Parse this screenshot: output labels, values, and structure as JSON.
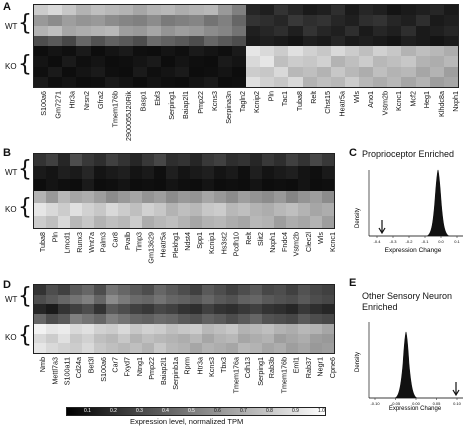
{
  "panels": {
    "A": {
      "letter": "A",
      "rows": [
        "WT",
        "KO"
      ],
      "genes": [
        "S100a6",
        "Gm7271",
        "Htr3a",
        "Nrsn2",
        "Gfra2",
        "Tmem176b",
        "2900055J20Rik",
        "Basp1",
        "Ebf3",
        "Serping1",
        "Baiap2l1",
        "Pmp22",
        "Kcns3",
        "Serpina3n",
        "Tagln2",
        "Kcnip2",
        "Pln",
        "Tac1",
        "Tuba8",
        "Relt",
        "Chst15",
        "Heatr5a",
        "Wls",
        "Ano1",
        "Vstm2b",
        "Kcnc1",
        "Mcf2",
        "Heg1",
        "Klhdc8a",
        "Nxph1"
      ]
    },
    "B": {
      "letter": "B",
      "rows": [
        "WT",
        "KO"
      ],
      "genes": [
        "Tuba8",
        "Pln",
        "Lmcd1",
        "Runx3",
        "Wnt7a",
        "Palm3",
        "Car8",
        "Pvalb",
        "Timp3",
        "Gm13629",
        "Heatr5a",
        "Plekhg1",
        "Ndst4",
        "Spp1",
        "Kcnip1",
        "Hs3st2",
        "Pcdh10",
        "Relt",
        "Slit2",
        "Nxph1",
        "Fndc4",
        "Vstm2b",
        "Clec2l",
        "Wls",
        "Kcnc1"
      ]
    },
    "C": {
      "letter": "C",
      "title": "Proprioceptor Enriched",
      "ylabel": "Density",
      "xlabel": "Expression Change",
      "ticks": [
        "-0.4",
        "-0.3",
        "-0.2",
        "-0.1",
        "0.0",
        "0.1"
      ]
    },
    "D": {
      "letter": "D",
      "rows": [
        "WT",
        "KO"
      ],
      "genes": [
        "Nmb",
        "Mettl7a3",
        "S100a11",
        "Cd24a",
        "Bet3l",
        "S100a6",
        "Car7",
        "Fxyd7",
        "Ntng1",
        "Pmp22",
        "Baiap2l1",
        "Serpinb1a",
        "Rprm",
        "Htr3a",
        "Kcns3",
        "Tbx3",
        "Tmem176a",
        "Cdh13",
        "Serping1",
        "Rab3b",
        "Tmem176b",
        "Eml1",
        "Rab37",
        "Negr1",
        "Cpne6"
      ]
    },
    "E": {
      "letter": "E",
      "title_line1": "Other Sensory Neuron",
      "title_line2": "Enriched",
      "ylabel": "Density",
      "xlabel": "Expression Change",
      "ticks": [
        "-0.10",
        "-0.05",
        "0.00",
        "0.05",
        "0.10"
      ]
    }
  },
  "colorbar": {
    "label": "Expression level, normalized TPM",
    "ticks": [
      "0.1",
      "0.2",
      "0.3",
      "0.4",
      "0.5",
      "0.6",
      "0.7",
      "0.8",
      "0.9",
      "1.0"
    ],
    "min": 0.0,
    "max": 1.0
  },
  "heatmap_values": {
    "A": [
      [
        0.8,
        0.85,
        0.78,
        0.7,
        0.75,
        0.72,
        0.7,
        0.65,
        0.7,
        0.72,
        0.68,
        0.7,
        0.72,
        0.6,
        0.5,
        0.15,
        0.12,
        0.2,
        0.15,
        0.1,
        0.12,
        0.18,
        0.1,
        0.15,
        0.12,
        0.08,
        0.1,
        0.12,
        0.15,
        0.1
      ],
      [
        0.6,
        0.55,
        0.62,
        0.58,
        0.6,
        0.55,
        0.52,
        0.5,
        0.55,
        0.48,
        0.5,
        0.52,
        0.45,
        0.5,
        0.4,
        0.2,
        0.18,
        0.15,
        0.22,
        0.18,
        0.2,
        0.15,
        0.12,
        0.18,
        0.2,
        0.15,
        0.12,
        0.18,
        0.1,
        0.12
      ],
      [
        0.7,
        0.75,
        0.65,
        0.68,
        0.7,
        0.72,
        0.62,
        0.6,
        0.65,
        0.58,
        0.62,
        0.6,
        0.55,
        0.52,
        0.45,
        0.12,
        0.15,
        0.18,
        0.12,
        0.2,
        0.15,
        0.12,
        0.18,
        0.1,
        0.15,
        0.12,
        0.18,
        0.1,
        0.12,
        0.15
      ],
      [
        0.3,
        0.35,
        0.28,
        0.4,
        0.32,
        0.38,
        0.35,
        0.3,
        0.42,
        0.38,
        0.35,
        0.3,
        0.4,
        0.35,
        0.3,
        0.1,
        0.12,
        0.1,
        0.08,
        0.12,
        0.1,
        0.15,
        0.1,
        0.12,
        0.1,
        0.08,
        0.12,
        0.1,
        0.08,
        0.1
      ],
      [
        0.05,
        0.08,
        0.06,
        0.1,
        0.05,
        0.08,
        0.1,
        0.06,
        0.05,
        0.08,
        0.06,
        0.1,
        0.08,
        0.06,
        0.1,
        0.9,
        0.85,
        0.8,
        0.88,
        0.82,
        0.78,
        0.85,
        0.8,
        0.75,
        0.82,
        0.78,
        0.7,
        0.75,
        0.72,
        0.68
      ],
      [
        0.08,
        0.05,
        0.1,
        0.06,
        0.08,
        0.05,
        0.06,
        0.08,
        0.1,
        0.05,
        0.08,
        0.06,
        0.05,
        0.1,
        0.08,
        0.85,
        0.9,
        0.75,
        0.8,
        0.78,
        0.82,
        0.7,
        0.75,
        0.8,
        0.72,
        0.75,
        0.78,
        0.7,
        0.68,
        0.72
      ],
      [
        0.06,
        0.1,
        0.05,
        0.08,
        0.1,
        0.06,
        0.05,
        0.1,
        0.06,
        0.08,
        0.1,
        0.05,
        0.06,
        0.08,
        0.05,
        0.8,
        0.78,
        0.85,
        0.72,
        0.75,
        0.7,
        0.78,
        0.72,
        0.68,
        0.75,
        0.7,
        0.72,
        0.65,
        0.7,
        0.62
      ],
      [
        0.1,
        0.06,
        0.08,
        0.05,
        0.06,
        0.1,
        0.08,
        0.05,
        0.08,
        0.06,
        0.05,
        0.08,
        0.1,
        0.05,
        0.06,
        0.88,
        0.82,
        0.78,
        0.85,
        0.7,
        0.75,
        0.72,
        0.8,
        0.72,
        0.68,
        0.72,
        0.65,
        0.7,
        0.62,
        0.65
      ]
    ],
    "B": [
      [
        0.2,
        0.25,
        0.15,
        0.3,
        0.22,
        0.18,
        0.25,
        0.2,
        0.15,
        0.22,
        0.28,
        0.18,
        0.2,
        0.15,
        0.22,
        0.25,
        0.18,
        0.2,
        0.15,
        0.22,
        0.18,
        0.25,
        0.2,
        0.28,
        0.22
      ],
      [
        0.1,
        0.08,
        0.12,
        0.1,
        0.15,
        0.08,
        0.1,
        0.12,
        0.08,
        0.1,
        0.06,
        0.12,
        0.08,
        0.1,
        0.12,
        0.08,
        0.1,
        0.06,
        0.12,
        0.08,
        0.1,
        0.12,
        0.08,
        0.06,
        0.1
      ],
      [
        0.05,
        0.08,
        0.06,
        0.05,
        0.1,
        0.05,
        0.06,
        0.08,
        0.05,
        0.06,
        0.05,
        0.08,
        0.06,
        0.05,
        0.08,
        0.05,
        0.06,
        0.05,
        0.08,
        0.05,
        0.06,
        0.05,
        0.08,
        0.05,
        0.06
      ],
      [
        0.7,
        0.6,
        0.72,
        0.65,
        0.68,
        0.62,
        0.55,
        0.6,
        0.65,
        0.58,
        0.62,
        0.55,
        0.6,
        0.58,
        0.65,
        0.6,
        0.55,
        0.62,
        0.58,
        0.55,
        0.6,
        0.52,
        0.58,
        0.62,
        0.55
      ],
      [
        0.9,
        0.85,
        0.8,
        0.88,
        0.82,
        0.78,
        0.85,
        0.8,
        0.75,
        0.82,
        0.78,
        0.7,
        0.75,
        0.72,
        0.78,
        0.8,
        0.72,
        0.75,
        0.7,
        0.68,
        0.72,
        0.75,
        0.7,
        0.65,
        0.68
      ],
      [
        0.8,
        0.75,
        0.85,
        0.72,
        0.78,
        0.7,
        0.75,
        0.72,
        0.8,
        0.68,
        0.72,
        0.75,
        0.7,
        0.65,
        0.7,
        0.72,
        0.68,
        0.65,
        0.72,
        0.7,
        0.62,
        0.68,
        0.65,
        0.7,
        0.62
      ]
    ],
    "D": [
      [
        0.2,
        0.3,
        0.25,
        0.35,
        0.4,
        0.3,
        0.45,
        0.4,
        0.35,
        0.3,
        0.4,
        0.35,
        0.3,
        0.25,
        0.35,
        0.3,
        0.25,
        0.3,
        0.35,
        0.28,
        0.3,
        0.25,
        0.32,
        0.28,
        0.25
      ],
      [
        0.3,
        0.35,
        0.4,
        0.45,
        0.5,
        0.4,
        0.55,
        0.48,
        0.42,
        0.4,
        0.45,
        0.4,
        0.38,
        0.35,
        0.4,
        0.35,
        0.32,
        0.38,
        0.4,
        0.35,
        0.32,
        0.3,
        0.35,
        0.3,
        0.28
      ],
      [
        0.15,
        0.1,
        0.2,
        0.25,
        0.3,
        0.2,
        0.35,
        0.3,
        0.25,
        0.22,
        0.28,
        0.25,
        0.2,
        0.18,
        0.25,
        0.2,
        0.18,
        0.22,
        0.25,
        0.2,
        0.18,
        0.15,
        0.22,
        0.18,
        0.15
      ],
      [
        0.4,
        0.3,
        0.35,
        0.5,
        0.45,
        0.4,
        0.5,
        0.45,
        0.4,
        0.38,
        0.42,
        0.4,
        0.35,
        0.32,
        0.38,
        0.35,
        0.3,
        0.35,
        0.4,
        0.32,
        0.3,
        0.28,
        0.35,
        0.3,
        0.28
      ],
      [
        0.95,
        0.9,
        0.92,
        0.85,
        0.88,
        0.82,
        0.8,
        0.85,
        0.78,
        0.82,
        0.8,
        0.75,
        0.78,
        0.8,
        0.72,
        0.75,
        0.78,
        0.7,
        0.72,
        0.75,
        0.7,
        0.68,
        0.72,
        0.7,
        0.65
      ],
      [
        0.85,
        0.8,
        0.88,
        0.78,
        0.82,
        0.75,
        0.72,
        0.78,
        0.7,
        0.75,
        0.72,
        0.7,
        0.68,
        0.72,
        0.65,
        0.7,
        0.72,
        0.65,
        0.68,
        0.7,
        0.62,
        0.65,
        0.68,
        0.62,
        0.6
      ],
      [
        0.9,
        0.85,
        0.82,
        0.8,
        0.85,
        0.78,
        0.75,
        0.72,
        0.75,
        0.7,
        0.78,
        0.72,
        0.7,
        0.65,
        0.7,
        0.68,
        0.65,
        0.72,
        0.7,
        0.65,
        0.68,
        0.62,
        0.65,
        0.6,
        0.62
      ]
    ]
  }
}
